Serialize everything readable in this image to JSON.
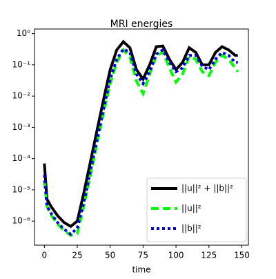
{
  "chart_data": {
    "type": "line",
    "title": "MRI energies",
    "xlabel": "time",
    "log_y": true,
    "legend": "lower right",
    "x": [
      0,
      2,
      5,
      10,
      15,
      20,
      25,
      30,
      35,
      40,
      45,
      50,
      55,
      60,
      65,
      70,
      75,
      80,
      85,
      90,
      95,
      100,
      105,
      110,
      115,
      120,
      125,
      130,
      135,
      140,
      145,
      147
    ],
    "series": [
      {
        "name": "||u||² + ||b||²",
        "color": "#000000",
        "dash": "solid",
        "values": [
          7e-05,
          5e-06,
          3e-06,
          1.5e-06,
          9e-07,
          6.8e-07,
          1e-06,
          8e-06,
          8e-05,
          0.0008,
          0.008,
          0.07,
          0.3,
          0.55,
          0.35,
          0.07,
          0.035,
          0.1,
          0.38,
          0.4,
          0.15,
          0.07,
          0.12,
          0.35,
          0.25,
          0.1,
          0.1,
          0.25,
          0.38,
          0.3,
          0.2,
          0.2
        ]
      },
      {
        "name": "||u||²",
        "color": "#00ff00",
        "dash": "dashed",
        "values": [
          2e-05,
          3e-06,
          1.6e-06,
          8e-07,
          5e-07,
          3.5e-07,
          4e-07,
          3e-06,
          3e-05,
          0.0003,
          0.003,
          0.025,
          0.12,
          0.3,
          0.18,
          0.03,
          0.012,
          0.05,
          0.2,
          0.25,
          0.08,
          0.028,
          0.05,
          0.18,
          0.15,
          0.06,
          0.045,
          0.12,
          0.2,
          0.15,
          0.08,
          0.06
        ]
      },
      {
        "name": "||b||²",
        "color": "#0000dd",
        "dash": "dotted",
        "values": [
          3e-05,
          3e-06,
          1.8e-06,
          9e-07,
          5.5e-07,
          3.8e-07,
          6e-07,
          4e-06,
          4e-05,
          0.0004,
          0.004,
          0.035,
          0.15,
          0.32,
          0.25,
          0.05,
          0.025,
          0.06,
          0.22,
          0.3,
          0.12,
          0.06,
          0.08,
          0.2,
          0.2,
          0.09,
          0.07,
          0.15,
          0.25,
          0.2,
          0.12,
          0.12
        ]
      }
    ],
    "xlim": [
      -7.5,
      155
    ],
    "xticks": [
      0,
      25,
      50,
      75,
      100,
      125,
      150
    ],
    "ylim": [
      1.7e-07,
      1.4
    ],
    "yticks": [
      {
        "value": 1e-06,
        "label": "10⁻⁶"
      },
      {
        "value": 1e-05,
        "label": "10⁻⁵"
      },
      {
        "value": 0.0001,
        "label": "10⁻⁴"
      },
      {
        "value": 0.001,
        "label": "10⁻³"
      },
      {
        "value": 0.01,
        "label": "10⁻²"
      },
      {
        "value": 0.1,
        "label": "10⁻¹"
      },
      {
        "value": 1,
        "label": "10⁰"
      }
    ]
  }
}
